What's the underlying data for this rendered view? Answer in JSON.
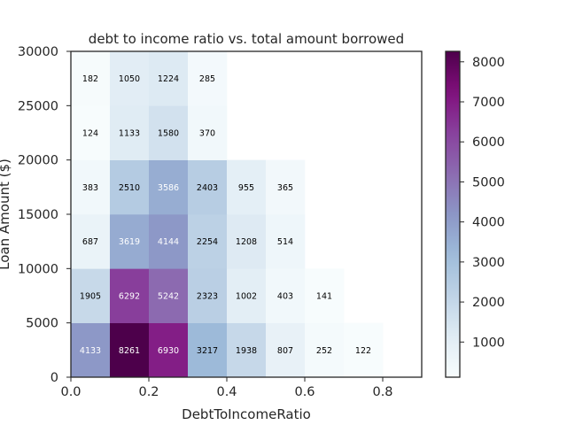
{
  "chart_data": {
    "type": "heatmap",
    "title": "debt to income ratio vs. total amount borrowed",
    "xlabel": "DebtToIncomeRatio",
    "ylabel": "Loan Amount ($)",
    "xlim": [
      0,
      0.9
    ],
    "ylim": [
      0,
      30000
    ],
    "x_bin_edges": [
      0,
      0.1,
      0.2,
      0.3,
      0.4,
      0.5,
      0.6,
      0.7,
      0.8,
      0.9
    ],
    "y_bin_edges": [
      0,
      5000,
      10000,
      15000,
      20000,
      25000,
      30000
    ],
    "x_ticks": [
      0.0,
      0.2,
      0.4,
      0.6,
      0.8
    ],
    "x_tick_labels": [
      "0.0",
      "0.2",
      "0.4",
      "0.6",
      "0.8"
    ],
    "y_ticks": [
      0,
      5000,
      10000,
      15000,
      20000,
      25000,
      30000
    ],
    "y_tick_labels": [
      "0",
      "5000",
      "10000",
      "15000",
      "20000",
      "25000",
      "30000"
    ],
    "counts": [
      [
        4133,
        8261,
        6930,
        3217,
        1938,
        807,
        252,
        122,
        null
      ],
      [
        1905,
        6292,
        5242,
        2323,
        1002,
        403,
        141,
        null,
        null
      ],
      [
        687,
        3619,
        4144,
        2254,
        1208,
        514,
        null,
        null,
        null
      ],
      [
        383,
        2510,
        3586,
        2403,
        955,
        365,
        null,
        null,
        null
      ],
      [
        124,
        1133,
        1580,
        370,
        null,
        null,
        null,
        null,
        null
      ],
      [
        182,
        1050,
        1224,
        285,
        null,
        null,
        null,
        null,
        null
      ]
    ],
    "colormap": "BuPu",
    "vmin": 122,
    "vmax": 8261,
    "colorbar_ticks": [
      1000,
      2000,
      3000,
      4000,
      5000,
      6000,
      7000,
      8000
    ],
    "colorbar_tick_labels": [
      "1000",
      "2000",
      "3000",
      "4000",
      "5000",
      "6000",
      "7000",
      "8000"
    ],
    "label_text_threshold": 3500,
    "colors": {
      "label_dark": "#000000",
      "label_light": "#ffffff",
      "axis": "#262626",
      "cmap_stops": [
        "#f7fcfd",
        "#e0ecf4",
        "#bfd3e6",
        "#9ebcda",
        "#8c96c6",
        "#8c6bb1",
        "#88419d",
        "#810f7c",
        "#4d004b"
      ]
    }
  }
}
